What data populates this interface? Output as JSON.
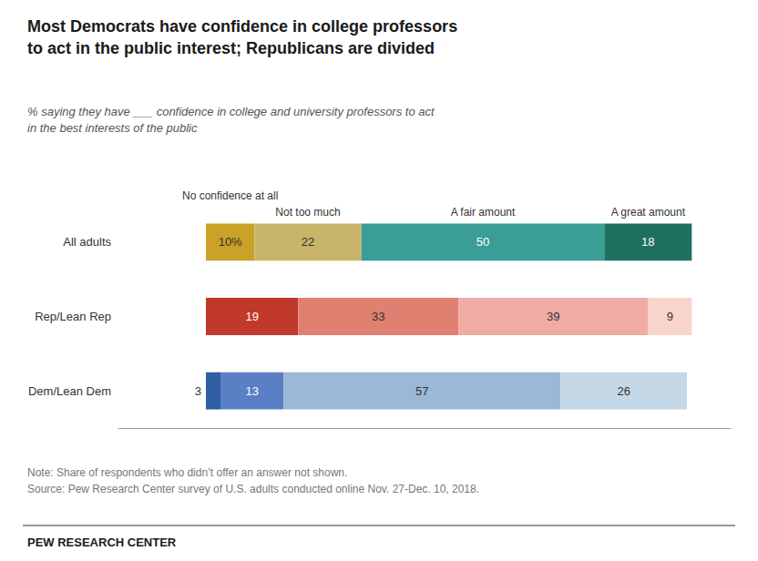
{
  "chart_data": {
    "type": "bar",
    "orientation": "horizontal",
    "stacked": true,
    "title": "Most Democrats have confidence in college professors\nto act in the public interest; Republicans are divided",
    "subtitle": "% saying they have ___ confidence in college and university professors to act\nin the best interests of the public",
    "categories": [
      "All adults",
      "Rep/Lean Rep",
      "Dem/Lean Dem"
    ],
    "series": [
      {
        "name": "No confidence at all",
        "colors": [
          "#c9a227",
          "#c0392b",
          "#2e5fa3"
        ],
        "values": [
          10,
          19,
          3
        ],
        "value_labels": [
          "10%",
          "19",
          "3"
        ]
      },
      {
        "name": "Not too much",
        "colors": [
          "#c8b56a",
          "#e08070",
          "#5b7fc4"
        ],
        "values": [
          22,
          33,
          13
        ]
      },
      {
        "name": "A fair amount",
        "colors": [
          "#3a9e96",
          "#f0aca4",
          "#9ab8d8"
        ],
        "values": [
          50,
          39,
          57
        ]
      },
      {
        "name": "A great amount",
        "colors": [
          "#1e7060",
          "#f8d4cc",
          "#c4d8e8"
        ],
        "values": [
          18,
          9,
          26
        ]
      }
    ],
    "xlim": [
      -18,
      108
    ],
    "xticks": [],
    "tick_labels": "y",
    "grid": false,
    "data_labels": true,
    "notes": [
      "Note: Share of respondents who didn’t offer an answer not shown.",
      "Source: Pew Research Center survey of U.S. adults conducted online Nov. 27-Dec. 10, 2018."
    ],
    "footer": "PEW RESEARCH CENTER"
  }
}
